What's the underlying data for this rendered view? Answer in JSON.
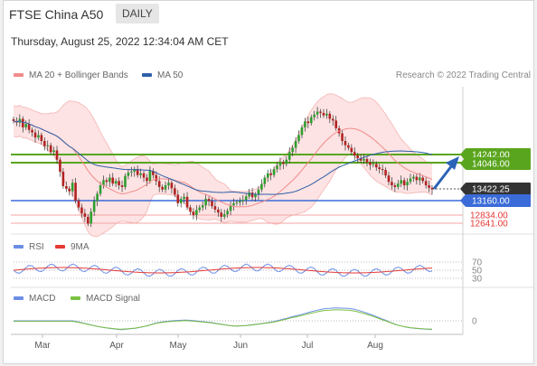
{
  "header": {
    "title": "FTSE China A50",
    "period": "DAILY"
  },
  "timestamp": "Thursday, August 25, 2022 12:34:04 AM CET",
  "legend": {
    "ma20": "MA 20 + Bollinger Bands",
    "ma50": "MA 50",
    "credit": "Research © 2022 Trading Central",
    "rsi": "RSI",
    "rsi_ma": "9MA",
    "macd": "MACD",
    "macd_signal": "MACD Signal"
  },
  "colors": {
    "ma20": "#f28b8b",
    "ma50": "#2e5fa8",
    "band_fill": "#fde3e3",
    "up": "#2e9e2e",
    "down": "#b22222",
    "resistance": "#5aa51e",
    "support": "#3a6bd8",
    "support_red": "#e53935",
    "arrow": "#2b63b8",
    "rsi": "#6c8ee6",
    "rsi_ma": "#e53935",
    "macd": "#6c8ee6",
    "macd_signal": "#7cc142"
  },
  "price_levels": [
    {
      "label": "14242.00",
      "type": "resistance"
    },
    {
      "label": "14046.00",
      "type": "resistance"
    },
    {
      "label": "13422.25",
      "type": "current"
    },
    {
      "label": "13160.00",
      "type": "support"
    },
    {
      "label": "12834.00",
      "type": "support2"
    },
    {
      "label": "12641.00",
      "type": "support2"
    }
  ],
  "rsi_levels": [
    "70",
    "50",
    "30"
  ],
  "macd_level": "0",
  "months": [
    "Mar",
    "Apr",
    "May",
    "Jun",
    "Jul",
    "Aug"
  ],
  "chart_data": {
    "type": "candlestick",
    "title": "FTSE China A50",
    "period": "DAILY",
    "x_ticks": [
      "Mar",
      "Apr",
      "May",
      "Jun",
      "Jul",
      "Aug"
    ],
    "y_ticks": [
      14242.0,
      14046.0,
      13422.25,
      13160.0,
      12834.0,
      12641.0
    ],
    "close": [
      15030,
      14990,
      15080,
      14880,
      14960,
      14820,
      14760,
      14640,
      14700,
      14560,
      14440,
      14460,
      14300,
      14340,
      14120,
      13840,
      13500,
      13440,
      13380,
      13580,
      13160,
      13000,
      12860,
      12780,
      12620,
      12900,
      13150,
      13320,
      13520,
      13640,
      13600,
      13700,
      13560,
      13620,
      13520,
      13480,
      13740,
      13820,
      13840,
      13900,
      13760,
      13800,
      13700,
      13620,
      13860,
      13760,
      13620,
      13480,
      13420,
      13520,
      13580,
      13450,
      13300,
      13100,
      13200,
      13250,
      13000,
      12900,
      12820,
      12940,
      13000,
      13050,
      13200,
      13150,
      13030,
      12950,
      12880,
      12780,
      12840,
      12920,
      13050,
      13100,
      13120,
      13150,
      13180,
      13260,
      13350,
      13240,
      13300,
      13420,
      13550,
      13700,
      13800,
      13760,
      13900,
      13980,
      14060,
      14020,
      14120,
      14300,
      14400,
      14560,
      14700,
      14880,
      15020,
      14980,
      15120,
      15180,
      15250,
      15220,
      15160,
      15200,
      15080,
      15040,
      14860,
      14740,
      14560,
      14460,
      14400,
      14300,
      14220,
      14160,
      14100,
      14140,
      14060,
      14000,
      14020,
      13940,
      13900,
      13880,
      13750,
      13600,
      13520,
      13480,
      13560,
      13640,
      13520,
      13600,
      13680,
      13720,
      13640,
      13700,
      13620,
      13520,
      13460,
      13422.25
    ],
    "ma50_first_last": [
      15000,
      14060
    ],
    "rsi_last": 45,
    "macd_last": 0
  }
}
